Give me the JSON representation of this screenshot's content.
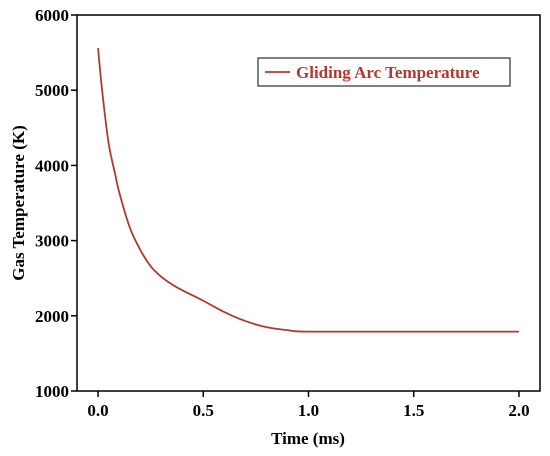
{
  "chart_data": {
    "type": "line",
    "xlabel": "Time (ms)",
    "ylabel": "Gas Temperature (K)",
    "xlim": [
      -0.1,
      2.1
    ],
    "ylim": [
      1000,
      6000
    ],
    "xticks": [
      0.0,
      0.5,
      1.0,
      1.5,
      2.0
    ],
    "xtick_labels": [
      "0.0",
      "0.5",
      "1.0",
      "1.5",
      "2.0"
    ],
    "yticks": [
      1000,
      2000,
      3000,
      4000,
      5000,
      6000
    ],
    "ytick_labels": [
      "1000",
      "2000",
      "3000",
      "4000",
      "5000",
      "6000"
    ],
    "grid": false,
    "legend_position": "top-right",
    "series": [
      {
        "name": "Gliding Arc Temperature",
        "color": "#b03a2e",
        "x": [
          0.0,
          0.02,
          0.05,
          0.08,
          0.1,
          0.15,
          0.2,
          0.25,
          0.3,
          0.35,
          0.4,
          0.5,
          0.6,
          0.7,
          0.8,
          0.9,
          1.0,
          1.5,
          2.0
        ],
        "y": [
          5560,
          4980,
          4300,
          3900,
          3650,
          3180,
          2880,
          2660,
          2520,
          2420,
          2340,
          2200,
          2050,
          1930,
          1850,
          1810,
          1790,
          1790,
          1790
        ]
      }
    ]
  }
}
